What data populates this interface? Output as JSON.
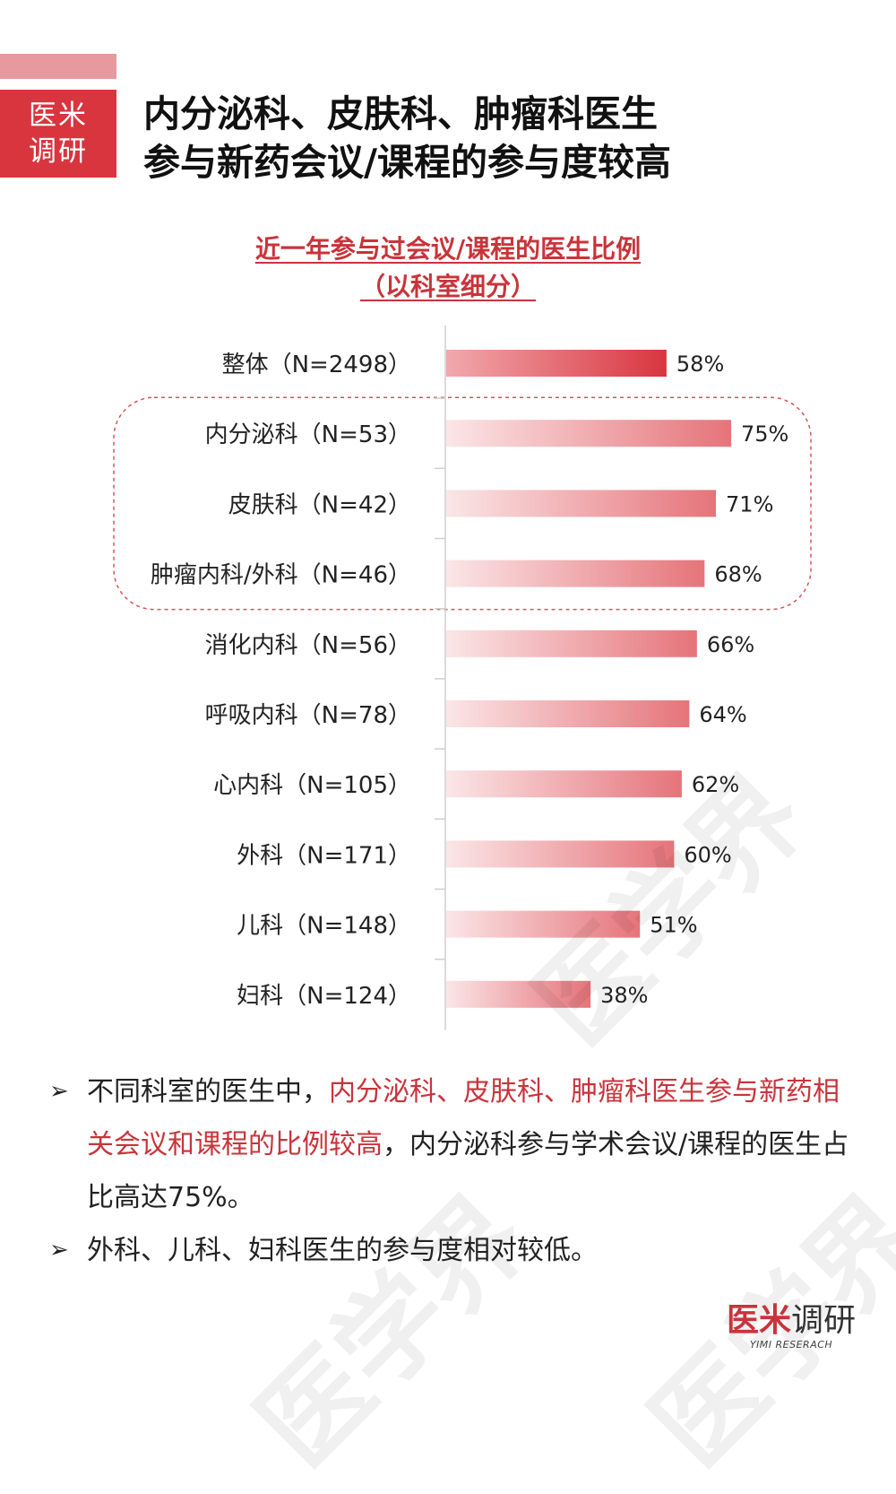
{
  "badge": {
    "line1": "医米",
    "line2": "调研"
  },
  "title": {
    "line1": "内分泌科、皮肤科、肿瘤科医生",
    "line2": "参与新药会议/课程的参与度较高"
  },
  "chart_data": {
    "type": "bar",
    "orientation": "horizontal",
    "title": "近一年参与过会议/课程的医生比例",
    "subtitle": "（以科室细分）",
    "categories": [
      "整体（N=2498）",
      "内分泌科（N=53）",
      "皮肤科（N=42）",
      "肿瘤内科/外科（N=46）",
      "消化内科（N=56）",
      "呼吸内科（N=78）",
      "心内科（N=105）",
      "外科（N=171）",
      "儿科（N=148）",
      "妇科（N=124）"
    ],
    "values": [
      58,
      75,
      71,
      68,
      66,
      64,
      62,
      60,
      51,
      38
    ],
    "value_labels": [
      "58%",
      "75%",
      "71%",
      "68%",
      "66%",
      "64%",
      "62%",
      "60%",
      "51%",
      "38%"
    ],
    "unit": "%",
    "highlighted_categories": [
      "内分泌科（N=53）",
      "皮肤科（N=42）",
      "肿瘤内科/外科（N=46）"
    ],
    "colors": {
      "overall_bar": "#d9353f",
      "bar": "#e5747a",
      "bar_light": "#fbe6e7",
      "highlight_box": "#d9535a"
    }
  },
  "bullets": [
    {
      "parts": [
        {
          "text": "不同科室的医生中，",
          "highlight": false
        },
        {
          "text": "内分泌科、皮肤科、肿瘤科医生参与新药相关会议和课程的比例较高",
          "highlight": true
        },
        {
          "text": "，内分泌科参与学术会议/课程的医生占比高达75%。",
          "highlight": false
        }
      ]
    },
    {
      "parts": [
        {
          "text": "外科、儿科、妇科医生的参与度相对较低。",
          "highlight": false
        }
      ]
    }
  ],
  "watermark": "医学界",
  "logo": {
    "part1": "医米",
    "part2": "调研",
    "sub": "YIMI RESERACH"
  },
  "colors": {
    "accent": "#d9353f",
    "accent_light": "#e79a9e",
    "text": "#222222"
  }
}
